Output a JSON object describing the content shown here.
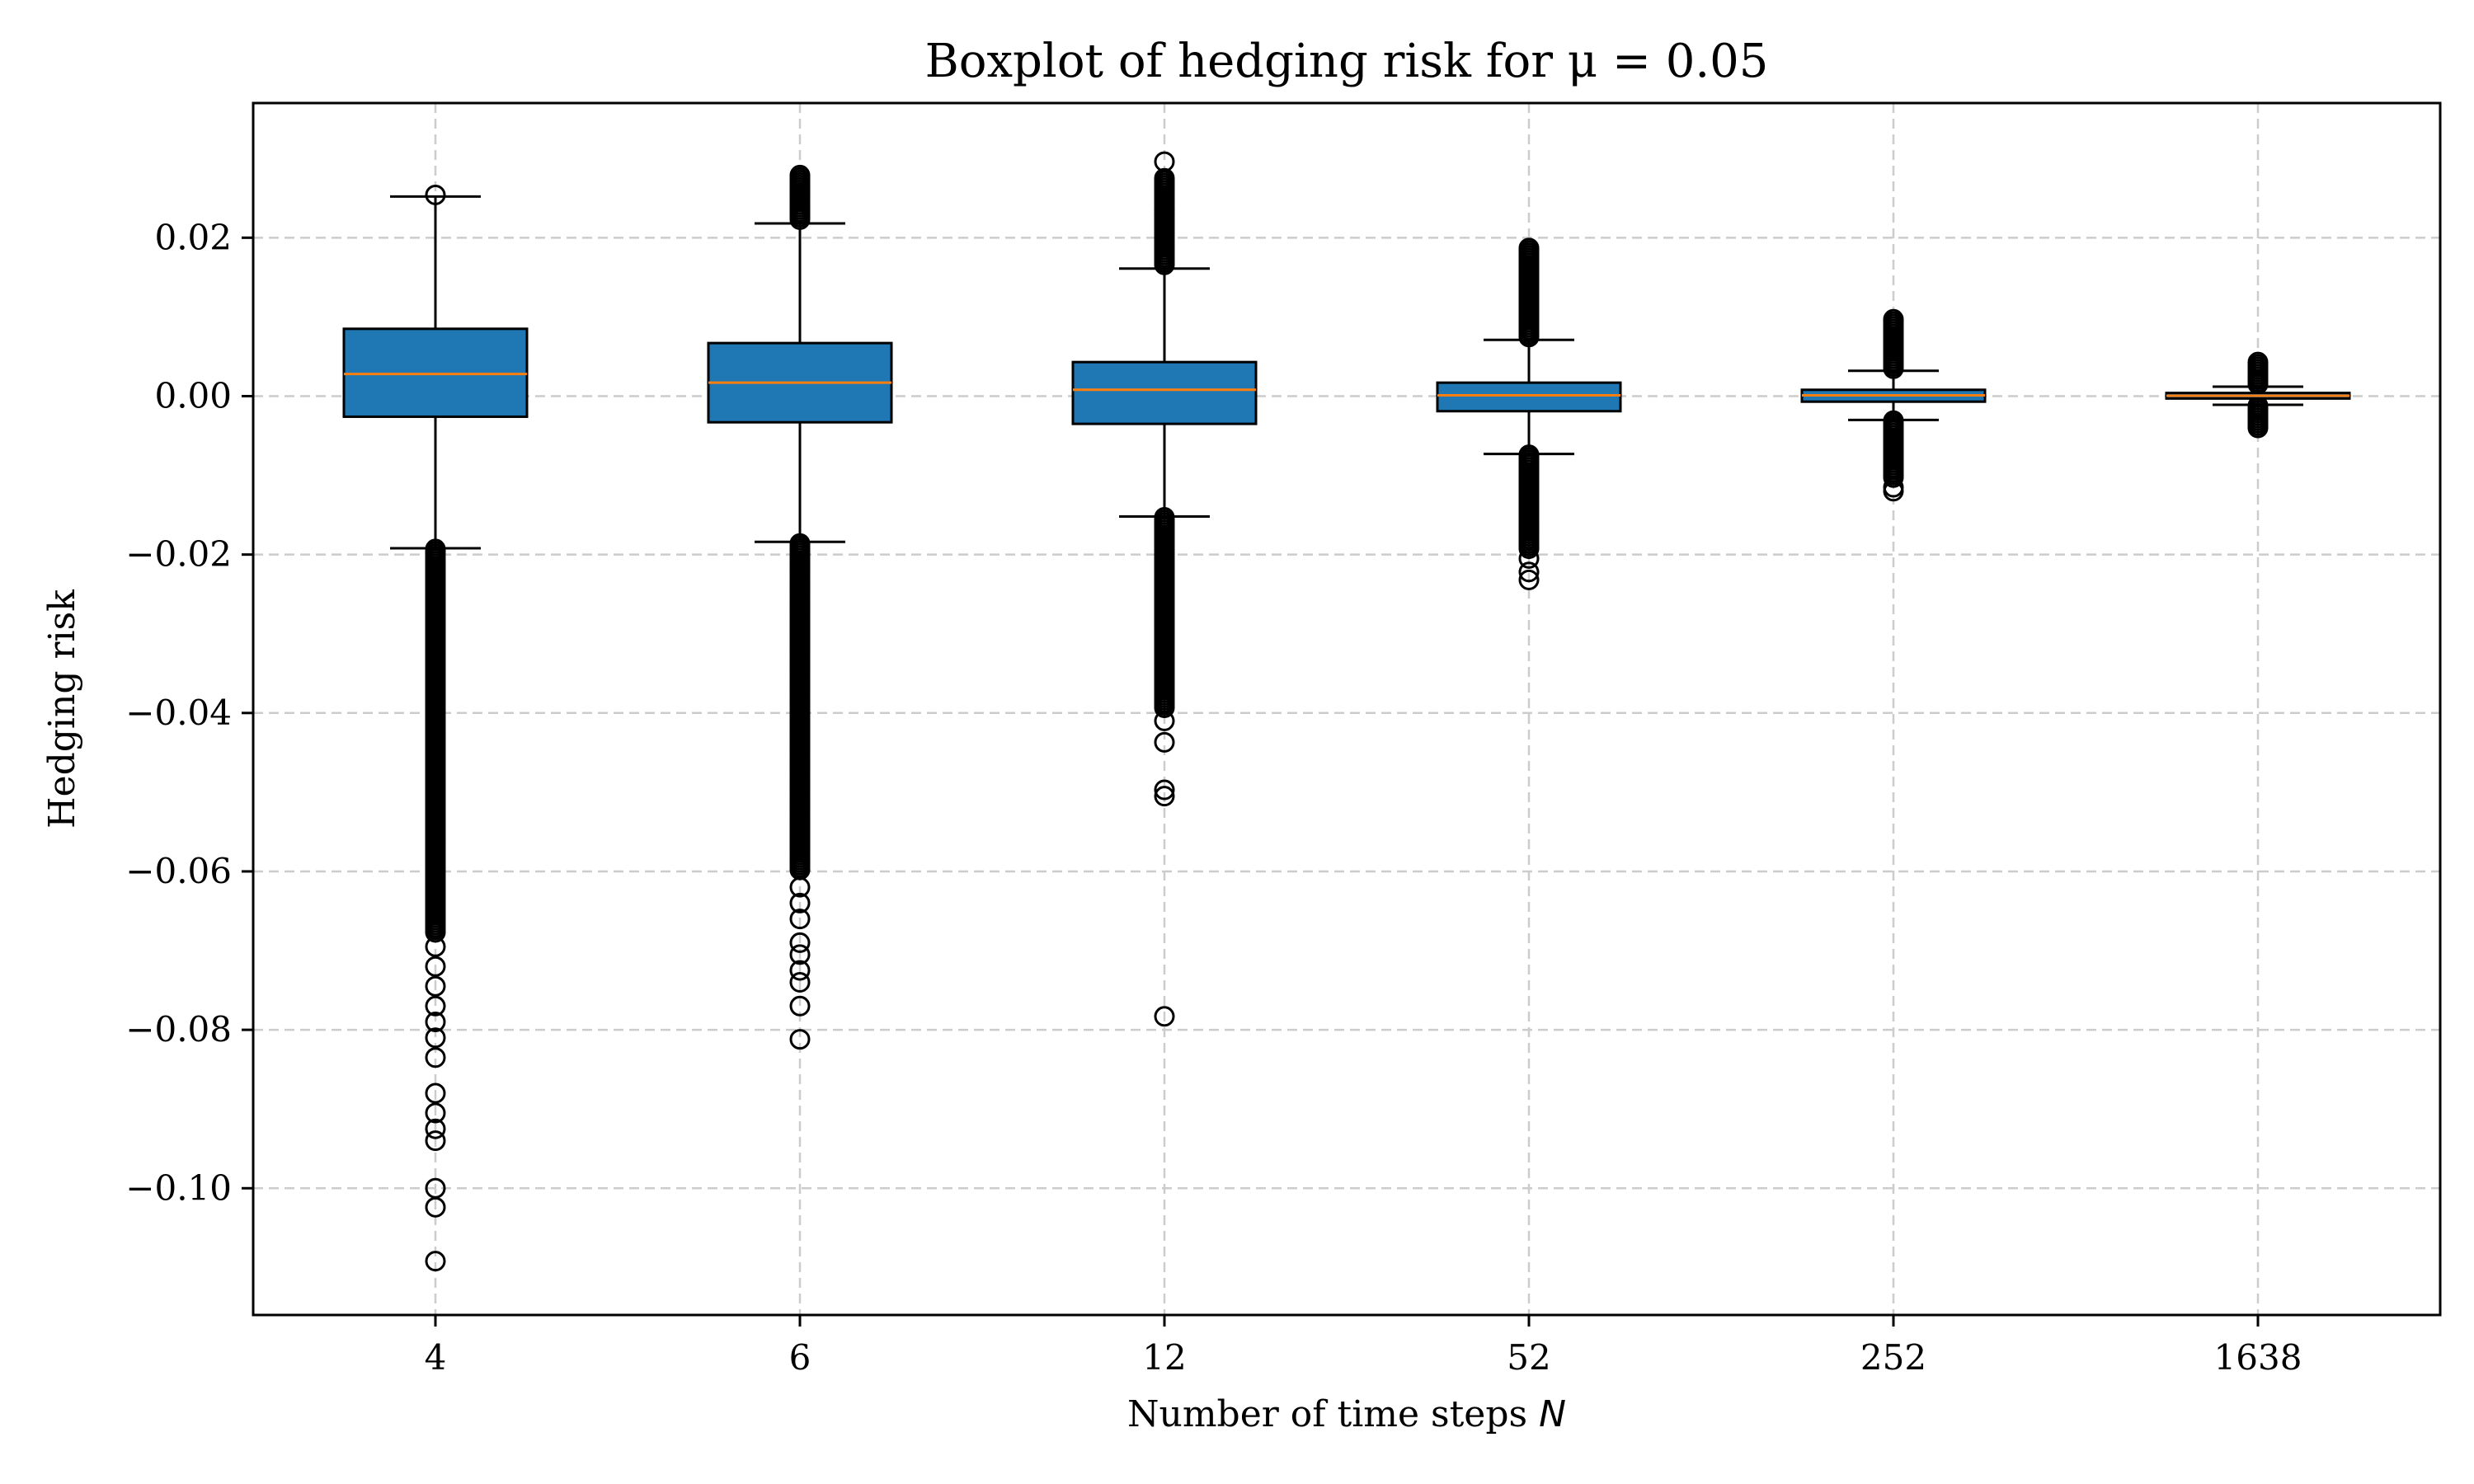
{
  "chart_data": {
    "type": "box",
    "title": "Boxplot of hedging risk for μ = 0.05",
    "xlabel": "Number of time steps ",
    "xlabel_var": "N",
    "ylabel": "Hedging risk",
    "categories": [
      "4",
      "6",
      "12",
      "52",
      "252",
      "1638"
    ],
    "ylim": [
      -0.116,
      0.037
    ],
    "yticks": [
      0.02,
      0.0,
      -0.02,
      -0.04,
      -0.06,
      -0.08,
      -0.1
    ],
    "ytick_labels": [
      "0.02",
      "0.00",
      "−0.02",
      "−0.04",
      "−0.06",
      "−0.08",
      "−0.10"
    ],
    "grid": true,
    "colors": {
      "box_fill": "#1f77b4",
      "median": "#ff7f0e",
      "edge": "#000000",
      "grid": "#cccccc"
    },
    "boxes": [
      {
        "q1": -0.0026,
        "median": 0.0028,
        "q3": 0.0085,
        "whisker_low": -0.0192,
        "whisker_high": 0.0252,
        "outliers_high": [
          0.0254
        ],
        "outlier_band_low": [
          -0.0193,
          -0.068
        ],
        "outliers_low": [
          -0.0695,
          -0.072,
          -0.0745,
          -0.077,
          -0.079,
          -0.081,
          -0.0835,
          -0.088,
          -0.0905,
          -0.0925,
          -0.094,
          -0.1,
          -0.1024,
          -0.1092
        ]
      },
      {
        "q1": -0.0033,
        "median": 0.0017,
        "q3": 0.0067,
        "whisker_low": -0.0184,
        "whisker_high": 0.0218,
        "outlier_band_high": [
          0.022,
          0.0279
        ],
        "outliers_high": [],
        "outlier_band_low": [
          -0.0186,
          -0.06
        ],
        "outliers_low": [
          -0.062,
          -0.064,
          -0.066,
          -0.069,
          -0.0705,
          -0.0725,
          -0.074,
          -0.077,
          -0.0812
        ]
      },
      {
        "q1": -0.0035,
        "median": 0.0008,
        "q3": 0.0043,
        "whisker_low": -0.0152,
        "whisker_high": 0.0161,
        "outlier_band_high": [
          0.0163,
          0.0275
        ],
        "outliers_high": [
          0.0296
        ],
        "outlier_band_low": [
          -0.0153,
          -0.0395
        ],
        "outliers_low": [
          -0.041,
          -0.0437,
          -0.0497,
          -0.0505,
          -0.0783
        ]
      },
      {
        "q1": -0.0019,
        "median": 0.0001,
        "q3": 0.0017,
        "whisker_low": -0.0073,
        "whisker_high": 0.0071,
        "outlier_band_high": [
          0.0072,
          0.0187
        ],
        "outliers_high": [],
        "outlier_band_low": [
          -0.0074,
          -0.0195
        ],
        "outliers_low": [
          -0.0205,
          -0.0222,
          -0.0232
        ]
      },
      {
        "q1": -0.0007,
        "median": 0.0001,
        "q3": 0.0008,
        "whisker_low": -0.003,
        "whisker_high": 0.0032,
        "outlier_band_high": [
          0.0033,
          0.0097
        ],
        "outliers_high": [],
        "outlier_band_low": [
          -0.0031,
          -0.0105
        ],
        "outliers_low": [
          -0.0115,
          -0.012
        ]
      },
      {
        "q1": -0.0003,
        "median": 5e-05,
        "q3": 0.0004,
        "whisker_low": -0.0011,
        "whisker_high": 0.0012,
        "outlier_band_high": [
          0.0013,
          0.0043
        ],
        "outliers_high": [],
        "outlier_band_low": [
          -0.0012,
          -0.0043
        ],
        "outliers_low": []
      }
    ]
  }
}
